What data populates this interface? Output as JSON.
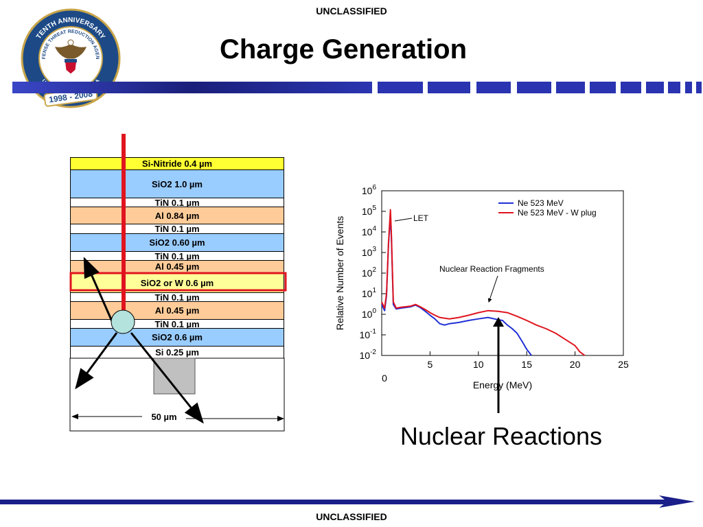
{
  "header": {
    "classification_top": "UNCLASSIFIED",
    "title": "Charge Generation"
  },
  "footer": {
    "classification_bottom": "UNCLASSIFIED"
  },
  "logo": {
    "ring_text_top": "TENTH ANNIVERSARY",
    "ring_text_mid": "DEFENSE THREAT REDUCTION AGENCY",
    "ring_text_bottom": "UNITED STATES OF AMERICA",
    "years": "1998 - 2008",
    "icon": "eagle-seal-icon"
  },
  "stack": {
    "layers": [
      {
        "label": "Si-Nitride  0.4 µm",
        "color": "#ffff33"
      },
      {
        "label": "SiO2 1.0 µm",
        "color": "#99ccff"
      },
      {
        "label": "TiN 0.1 µm",
        "color": "#ffffff"
      },
      {
        "label": "Al 0.84 µm",
        "color": "#ffcc99"
      },
      {
        "label": "TiN 0.1 µm",
        "color": "#ffffff"
      },
      {
        "label": "SiO2 0.60 µm",
        "color": "#99ccff"
      },
      {
        "label": "TiN 0.1 µm",
        "color": "#ffffff"
      },
      {
        "label": "Al 0.45 µm",
        "color": "#ffcc99"
      },
      {
        "label": "SiO2 or W 0.6 µm",
        "color": "#ffff99"
      },
      {
        "label": "TiN 0.1 µm",
        "color": "#ffffff"
      },
      {
        "label": "Al 0.45 µm",
        "color": "#ffcc99"
      },
      {
        "label": "TiN 0.1 µm",
        "color": "#ffffff"
      },
      {
        "label": "SiO2 0.6 µm",
        "color": "#99ccff"
      },
      {
        "label": "Si 0.25 µm",
        "color": "#ffffff"
      }
    ],
    "width_label": "50 µm",
    "highlight_color": "#e0141e",
    "ion_track_color": "#e0141e",
    "nucleus_color": "#b4e2dc"
  },
  "chart_data": {
    "type": "line",
    "title": "",
    "xlabel": "Energy (MeV)",
    "ylabel": "Relative Number of Events",
    "xlim": [
      0,
      25
    ],
    "ylim": [
      0.01,
      1000000
    ],
    "yscale": "log",
    "x_ticks": [
      "0",
      "5",
      "10",
      "15",
      "20",
      "25"
    ],
    "y_ticks": [
      {
        "base": "10",
        "exp": "6"
      },
      {
        "base": "10",
        "exp": "5"
      },
      {
        "base": "10",
        "exp": "4"
      },
      {
        "base": "10",
        "exp": "3"
      },
      {
        "base": "10",
        "exp": "2"
      },
      {
        "base": "10",
        "exp": "1"
      },
      {
        "base": "10",
        "exp": "0"
      },
      {
        "base": "10",
        "exp": "-1"
      },
      {
        "base": "10",
        "exp": "-2"
      }
    ],
    "grid": false,
    "legend_position": "top-right",
    "series": [
      {
        "name": "Ne 523 MeV",
        "color": "#1f2fd6",
        "x": [
          0.0,
          0.3,
          0.5,
          0.7,
          0.9,
          1.0,
          1.2,
          1.5,
          2,
          3,
          3.5,
          4,
          4.5,
          5,
          5.5,
          6,
          6.5,
          7,
          8,
          9,
          10,
          11,
          12,
          12.5,
          13,
          13.5,
          14,
          14.5,
          15,
          15.5
        ],
        "y": [
          3,
          1.5,
          8,
          2500,
          60000,
          5000,
          3,
          1.8,
          2.0,
          2.3,
          2.8,
          2.1,
          1.4,
          0.9,
          0.6,
          0.35,
          0.3,
          0.35,
          0.4,
          0.5,
          0.6,
          0.7,
          0.55,
          0.5,
          0.3,
          0.2,
          0.12,
          0.05,
          0.02,
          0.01
        ]
      },
      {
        "name": "Ne 523 MeV - W plug",
        "color": "#e0141e",
        "x": [
          0.0,
          0.3,
          0.5,
          0.7,
          0.9,
          1.0,
          1.2,
          1.5,
          2,
          3,
          3.5,
          4,
          4.5,
          5,
          5.5,
          6,
          7,
          8,
          9,
          10,
          11,
          12,
          13,
          14,
          15,
          16,
          17,
          18,
          19,
          20,
          20.5,
          21
        ],
        "y": [
          4,
          2,
          10,
          3000,
          120000,
          8000,
          4,
          2,
          2.2,
          2.5,
          3.0,
          2.3,
          1.7,
          1.2,
          0.9,
          0.7,
          0.6,
          0.7,
          0.9,
          1.2,
          1.5,
          1.4,
          1.2,
          0.8,
          0.5,
          0.3,
          0.2,
          0.12,
          0.06,
          0.03,
          0.015,
          0.01
        ]
      }
    ],
    "annotations": [
      {
        "text": "LET",
        "x": 1.0,
        "y": 50000
      },
      {
        "text": "Nuclear Reaction Fragments",
        "x": 11.5,
        "y": 1.5
      }
    ],
    "subtitle": "Nuclear Reactions"
  }
}
